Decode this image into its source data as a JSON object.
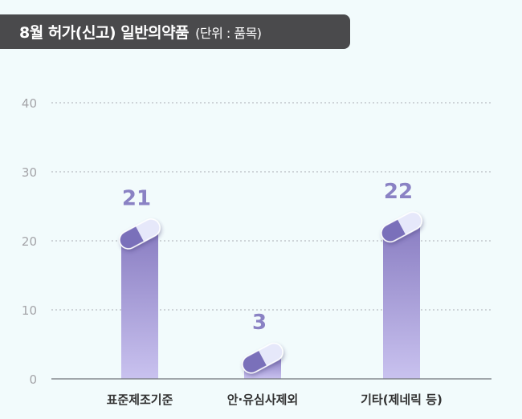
{
  "chart_data": {
    "type": "bar",
    "title": "8월 허가(신고) 일반의약품",
    "unit": "(단위 : 품목)",
    "categories": [
      "표준제조기준",
      "안·유심사제외",
      "기타(제네릭 등)"
    ],
    "values": [
      21,
      3,
      22
    ],
    "yticks": [
      "0",
      "10",
      "20",
      "30",
      "40"
    ],
    "ylim": [
      0,
      40
    ],
    "grid": true,
    "colors": {
      "bar_top": "#8b7fc3",
      "bar_bottom": "#c9c2ef",
      "capsule_dark": "#7a6fba",
      "capsule_light": "#e6e8fa",
      "value_label": "#8a82c4",
      "title_bg": "#4a4a4c"
    },
    "icon": "capsule-icon"
  }
}
